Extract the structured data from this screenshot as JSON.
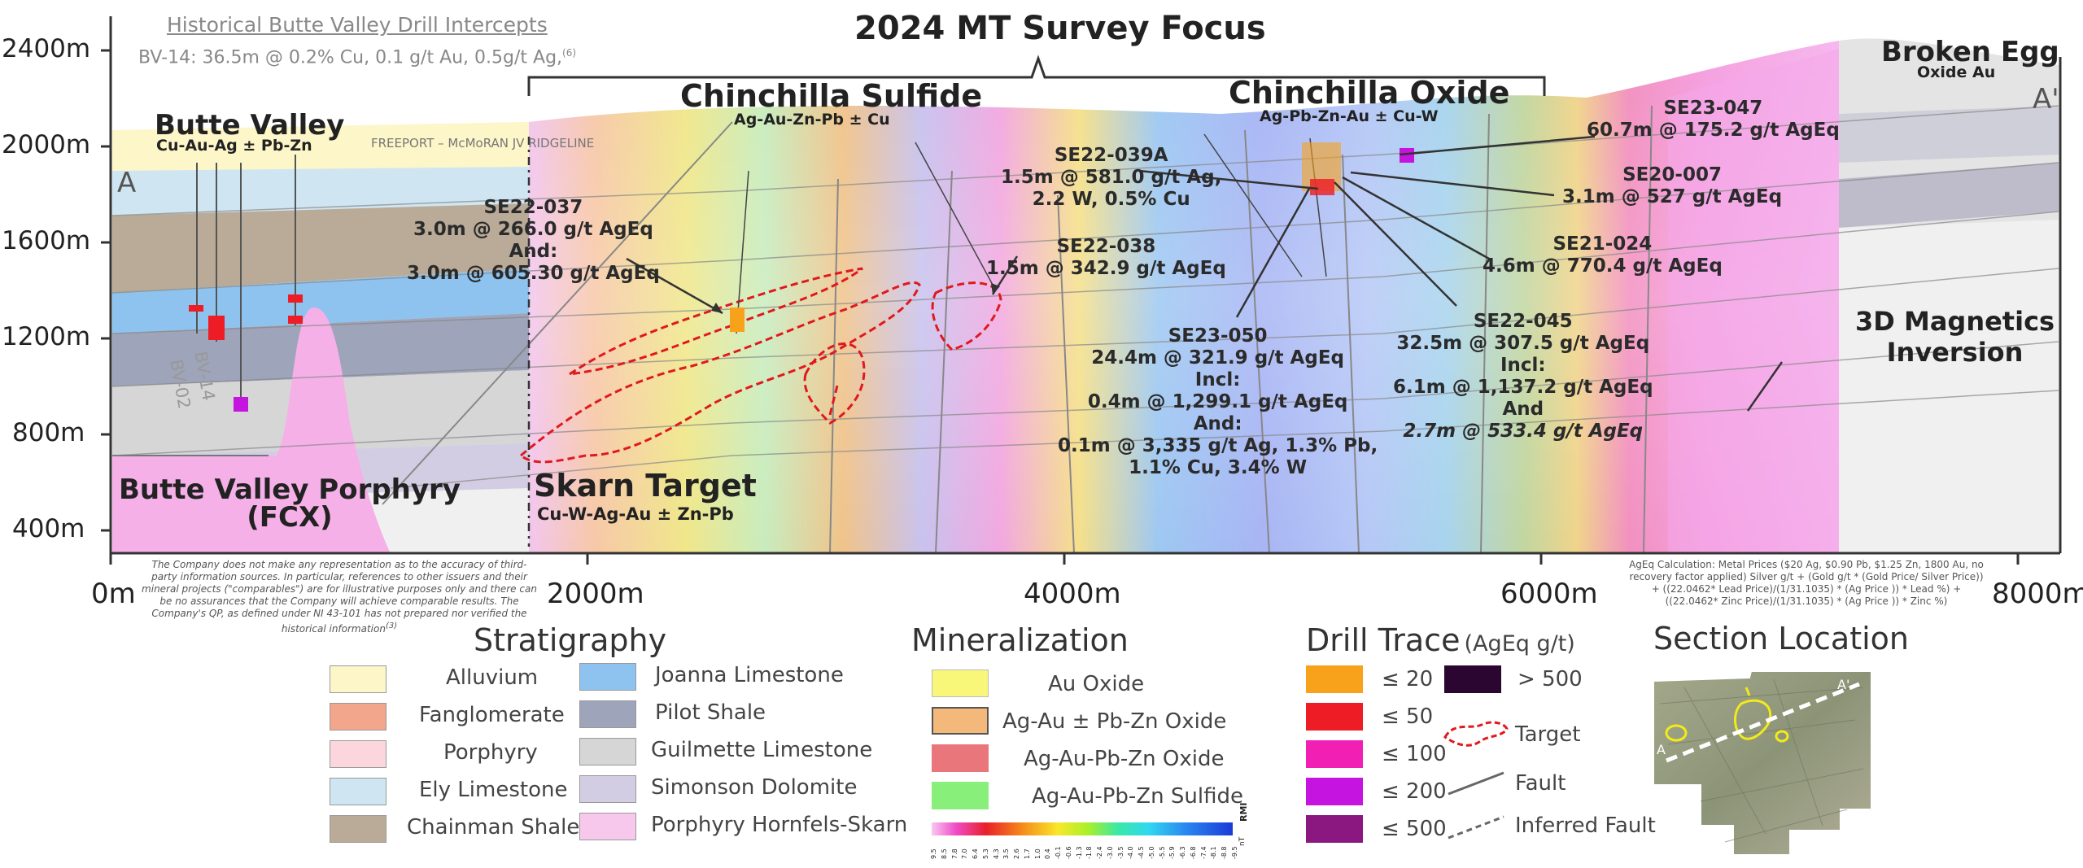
{
  "colors": {
    "alluvium": "#fdf6c8",
    "fanglomerate": "#f2a68c",
    "porphyry": "#fbd6dc",
    "ely": "#cfe6f2",
    "chainman": "#b9ab98",
    "joanna": "#8ec3ef",
    "pilot": "#9ea4ba",
    "guilmette": "#d6d6d6",
    "simonson": "#d3cde3",
    "hornfels": "#f8c8ec",
    "target": "#e0191e"
  },
  "section": {
    "title": "2024 MT Survey Focus",
    "historical_header": "Historical Butte Valley Drill Intercepts",
    "historical_line": "BV-14: 36.5m @ 0.2% Cu, 0.1 g/t Au, 0.5g/t Ag,",
    "historical_sup": "(6)",
    "ridgeline": "FREEPORT – McMoRAN JV RIDGELINE",
    "a_left": "A",
    "a_right": "A'",
    "y_ticks": [
      "2400m",
      "2000m",
      "1600m",
      "1200m",
      "800m",
      "400m"
    ],
    "x_ticks": [
      "0m",
      "2000m",
      "4000m",
      "6000m",
      "8000m"
    ],
    "areas": [
      {
        "name": "Butte Valley",
        "sub": "Cu-Au-Ag ± Pb-Zn"
      },
      {
        "name": "Chinchilla Sulfide",
        "sub": "Ag-Au-Zn-Pb ± Cu"
      },
      {
        "name": "Chinchilla Oxide",
        "sub": "Ag-Pb-Zn-Au ± Cu-W"
      },
      {
        "name": "Broken Egg",
        "sub": "Oxide Au"
      },
      {
        "name": "Skarn Target",
        "sub": "Cu-W-Ag-Au ± Zn-Pb"
      }
    ],
    "porphyry_label": [
      "Butte Valley Porphyry",
      "(FCX)"
    ],
    "magnetics_label": [
      "3D Magnetics",
      "Inversion"
    ],
    "bv_holes": [
      "BV-02",
      "BV-14"
    ],
    "drill_labels": {
      "se22_037": [
        "SE22-037",
        "3.0m @ 266.0 g/t AgEq",
        "And:",
        "3.0m @ 605.30 g/t AgEq"
      ],
      "se22_038": [
        "SE22-038",
        "1.5m @ 342.9 g/t AgEq"
      ],
      "se22_039a": [
        "SE22-039A",
        "1.5m @ 581.0 g/t Ag,",
        "2.2 W, 0.5% Cu"
      ],
      "se23_047": [
        "SE23-047",
        "60.7m @ 175.2 g/t AgEq"
      ],
      "se20_007": [
        "SE20-007",
        "3.1m @ 527 g/t AgEq"
      ],
      "se21_024": [
        "SE21-024",
        "4.6m @ 770.4 g/t AgEq"
      ],
      "se23_050": [
        "SE23-050",
        "24.4m @ 321.9 g/t AgEq",
        "Incl:",
        "0.4m @ 1,299.1 g/t AgEq",
        "And:",
        "0.1m @ 3,335 g/t Ag, 1.3% Pb,",
        "1.1% Cu, 3.4% W"
      ],
      "se22_045": [
        "SE22-045",
        "32.5m @ 307.5 g/t AgEq",
        "Incl:",
        "6.1m @ 1,137.2 g/t AgEq",
        "And",
        "2.7m @ 533.4 g/t AgEq"
      ]
    },
    "disclaimer": "The Company does not make any representation as to the accuracy of third-party information sources. In particular, references to other issuers and their mineral projects (\"comparables\") are for illustrative purposes only and there can be no assurances that the Company will achieve comparable results. The Company's QP, as defined under NI 43-101 has not prepared nor verified the historical information",
    "disclaimer_sup": "(3)",
    "ageq_calc": "AgEq Calculation: Metal Prices ($20 Ag, $0.90 Pb, $1.25 Zn, 1800 Au, no recovery factor applied) Silver g/t + (Gold g/t * (Gold Price/ Silver Price)) + ((22.0462* Lead Price)/(1/31.1035) * (Ag Price )) * Lead %) + ((22.0462* Zinc Price)/(1/31.1035) * (Ag Price )) * Zinc %)"
  },
  "legend": {
    "stratigraphy": {
      "title": "Stratigraphy",
      "items": [
        "Alluvium",
        "Fanglomerate",
        "Porphyry",
        "Ely Limestone",
        "Chainman Shale",
        "Joanna Limestone",
        "Pilot Shale",
        "Guilmette Limestone",
        "Simonson Dolomite",
        "Porphyry Hornfels-Skarn"
      ]
    },
    "mineralization": {
      "title": "Mineralization",
      "items": [
        "Au Oxide",
        "Ag-Au ± Pb-Zn Oxide",
        "Ag-Au-Pb-Zn Oxide",
        "Ag-Au-Pb-Zn Sulfide"
      ],
      "colors": [
        "#f9f77a",
        "#f4b87a",
        "#e8767a",
        "#88f07a"
      ],
      "scale_ticks": [
        "9.5",
        "8.5",
        "7.8",
        "7.0",
        "6.4",
        "5.3",
        "4.3",
        "3.5",
        "2.6",
        "1.7",
        "1.0",
        "0.4",
        "-0.1",
        "-0.6",
        "-1.3",
        "-1.8",
        "-2.4",
        "-3.0",
        "-3.5",
        "-4.0",
        "-4.5",
        "-5.0",
        "-5.5",
        "-5.9",
        "-6.3",
        "-6.8",
        "-7.4",
        "-8.1",
        "-8.8",
        "-9.5"
      ],
      "scale_unit": "RMI",
      "scale_unit2": "nT"
    },
    "drill_trace": {
      "title": "Drill Trace",
      "unit": "(AgEq g/t)",
      "items": [
        {
          "label": "≤ 20",
          "color": "#f7a21a"
        },
        {
          "label": "≤ 50",
          "color": "#ee1c24"
        },
        {
          "label": "≤ 100",
          "color": "#f21fb4"
        },
        {
          "label": "≤ 200",
          "color": "#c614e0"
        },
        {
          "label": "≤ 500",
          "color": "#8a1880"
        },
        {
          "label": "> 500",
          "color": "#2b0630"
        }
      ],
      "symbols": [
        "Target",
        "Fault",
        "Inferred Fault"
      ]
    },
    "section_location": {
      "title": "Section Location",
      "a": "A",
      "a2": "A'"
    }
  }
}
